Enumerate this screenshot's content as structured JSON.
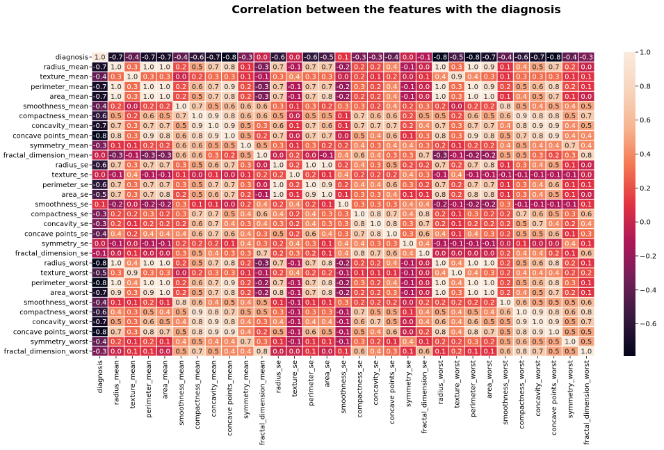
{
  "chart_data": {
    "type": "heatmap",
    "title": "Correlation between the features with the diagnosis",
    "colormap": "rocket",
    "vmin": -0.79,
    "vmax": 1.0,
    "annotated": true,
    "colorbar": {
      "placement": "right",
      "ticks": [
        "-0.6",
        "-0.4",
        "-0.2",
        "0.0",
        "0.2",
        "0.4",
        "0.6",
        "0.8",
        "1.0"
      ]
    },
    "labels": [
      "diagnosis",
      "radius_mean",
      "texture_mean",
      "perimeter_mean",
      "area_mean",
      "smoothness_mean",
      "compactness_mean",
      "concavity_mean",
      "concave points_mean",
      "symmetry_mean",
      "fractal_dimension_mean",
      "radius_se",
      "texture_se",
      "perimeter_se",
      "area_se",
      "smoothness_se",
      "compactness_se",
      "concavity_se",
      "concave points_se",
      "symmetry_se",
      "fractal_dimension_se",
      "radius_worst",
      "texture_worst",
      "perimeter_worst",
      "area_worst",
      "smoothness_worst",
      "compactness_worst",
      "concavity_worst",
      "concave points_worst",
      "symmetry_worst",
      "fractal_dimension_worst"
    ],
    "values": [
      [
        1.0,
        -0.7,
        -0.4,
        -0.7,
        -0.7,
        -0.4,
        -0.6,
        -0.7,
        -0.8,
        -0.3,
        0.0,
        -0.6,
        0.0,
        -0.6,
        -0.5,
        0.1,
        -0.3,
        -0.3,
        -0.4,
        0.0,
        -0.1,
        -0.8,
        -0.5,
        -0.8,
        -0.7,
        -0.4,
        -0.6,
        -0.7,
        -0.8,
        -0.4,
        -0.3
      ],
      [
        -0.7,
        1.0,
        0.3,
        1.0,
        1.0,
        0.2,
        0.5,
        0.7,
        0.8,
        0.1,
        -0.3,
        0.7,
        -0.1,
        0.7,
        0.7,
        -0.2,
        0.2,
        0.2,
        0.4,
        -0.1,
        -0.0,
        1.0,
        0.3,
        1.0,
        0.9,
        0.1,
        0.4,
        0.5,
        0.7,
        0.2,
        0.0
      ],
      [
        -0.4,
        0.3,
        1.0,
        0.3,
        0.3,
        -0.0,
        0.2,
        0.3,
        0.3,
        0.1,
        -0.1,
        0.3,
        0.4,
        0.3,
        0.3,
        0.0,
        0.2,
        0.1,
        0.2,
        0.0,
        0.1,
        0.4,
        0.9,
        0.4,
        0.3,
        0.1,
        0.3,
        0.3,
        0.3,
        0.1,
        0.1
      ],
      [
        -0.7,
        1.0,
        0.3,
        1.0,
        1.0,
        0.2,
        0.6,
        0.7,
        0.9,
        0.2,
        -0.3,
        0.7,
        -0.1,
        0.7,
        0.7,
        -0.2,
        0.3,
        0.2,
        0.4,
        -0.1,
        -0.0,
        1.0,
        0.3,
        1.0,
        0.9,
        0.2,
        0.5,
        0.6,
        0.8,
        0.2,
        0.1
      ],
      [
        -0.7,
        1.0,
        0.3,
        1.0,
        1.0,
        0.2,
        0.5,
        0.7,
        0.8,
        0.2,
        -0.3,
        0.7,
        -0.1,
        0.7,
        0.8,
        -0.2,
        0.2,
        0.2,
        0.4,
        -0.1,
        -0.0,
        1.0,
        0.3,
        1.0,
        1.0,
        0.1,
        0.4,
        0.5,
        0.7,
        0.1,
        0.0
      ],
      [
        -0.4,
        0.2,
        -0.0,
        0.2,
        0.2,
        1.0,
        0.7,
        0.5,
        0.6,
        0.6,
        0.6,
        0.3,
        0.1,
        0.3,
        0.2,
        0.3,
        0.3,
        0.2,
        0.4,
        0.2,
        0.3,
        0.2,
        0.0,
        0.2,
        0.2,
        0.8,
        0.5,
        0.4,
        0.5,
        0.4,
        0.5
      ],
      [
        -0.6,
        0.5,
        0.2,
        0.6,
        0.5,
        0.7,
        1.0,
        0.9,
        0.8,
        0.6,
        0.6,
        0.5,
        0.0,
        0.5,
        0.5,
        0.1,
        0.7,
        0.6,
        0.6,
        0.2,
        0.5,
        0.5,
        0.2,
        0.6,
        0.5,
        0.6,
        0.9,
        0.8,
        0.8,
        0.5,
        0.7
      ],
      [
        -0.7,
        0.7,
        0.3,
        0.7,
        0.7,
        0.5,
        0.9,
        1.0,
        0.9,
        0.5,
        0.3,
        0.6,
        0.1,
        0.7,
        0.6,
        0.1,
        0.7,
        0.7,
        0.7,
        0.2,
        0.4,
        0.7,
        0.3,
        0.7,
        0.7,
        0.4,
        0.8,
        0.9,
        0.9,
        0.4,
        0.5
      ],
      [
        -0.8,
        0.8,
        0.3,
        0.9,
        0.8,
        0.6,
        0.8,
        0.9,
        1.0,
        0.5,
        0.2,
        0.7,
        0.0,
        0.7,
        0.7,
        0.0,
        0.5,
        0.4,
        0.6,
        0.1,
        0.3,
        0.8,
        0.3,
        0.9,
        0.8,
        0.5,
        0.7,
        0.8,
        0.9,
        0.4,
        0.4
      ],
      [
        -0.3,
        0.1,
        0.1,
        0.2,
        0.2,
        0.6,
        0.6,
        0.5,
        0.5,
        1.0,
        0.5,
        0.3,
        0.1,
        0.3,
        0.2,
        0.2,
        0.4,
        0.3,
        0.4,
        0.4,
        0.3,
        0.2,
        0.1,
        0.2,
        0.2,
        0.4,
        0.5,
        0.4,
        0.4,
        0.7,
        0.4
      ],
      [
        0.0,
        -0.3,
        -0.1,
        -0.3,
        -0.3,
        0.6,
        0.6,
        0.3,
        0.2,
        0.5,
        1.0,
        0.0,
        0.2,
        0.0,
        -0.1,
        0.4,
        0.6,
        0.4,
        0.3,
        0.3,
        0.7,
        -0.3,
        -0.1,
        -0.2,
        -0.2,
        0.5,
        0.5,
        0.3,
        0.2,
        0.3,
        0.8
      ],
      [
        -0.6,
        0.7,
        0.3,
        0.7,
        0.7,
        0.3,
        0.5,
        0.6,
        0.7,
        0.3,
        0.0,
        1.0,
        0.2,
        1.0,
        1.0,
        0.2,
        0.4,
        0.3,
        0.5,
        0.2,
        0.2,
        0.7,
        0.2,
        0.7,
        0.8,
        0.1,
        0.3,
        0.4,
        0.5,
        0.1,
        0.0
      ],
      [
        0.0,
        -0.1,
        0.4,
        -0.1,
        -0.1,
        0.1,
        0.0,
        0.1,
        0.0,
        0.1,
        0.2,
        0.2,
        1.0,
        0.2,
        0.1,
        0.4,
        0.2,
        0.2,
        0.2,
        0.4,
        0.3,
        -0.1,
        0.4,
        -0.1,
        -0.1,
        -0.1,
        -0.1,
        -0.1,
        -0.1,
        -0.1,
        -0.0
      ],
      [
        -0.6,
        0.7,
        0.3,
        0.7,
        0.7,
        0.3,
        0.5,
        0.7,
        0.7,
        0.3,
        0.0,
        1.0,
        0.2,
        1.0,
        0.9,
        0.2,
        0.4,
        0.4,
        0.6,
        0.3,
        0.2,
        0.7,
        0.2,
        0.7,
        0.7,
        0.1,
        0.3,
        0.4,
        0.6,
        0.1,
        0.1
      ],
      [
        -0.5,
        0.7,
        0.3,
        0.7,
        0.8,
        0.2,
        0.5,
        0.6,
        0.7,
        0.2,
        -0.1,
        1.0,
        0.1,
        0.9,
        1.0,
        0.1,
        0.3,
        0.3,
        0.4,
        0.1,
        0.1,
        0.8,
        0.2,
        0.8,
        0.8,
        0.1,
        0.3,
        0.4,
        0.5,
        0.1,
        0.0
      ],
      [
        0.1,
        -0.2,
        0.0,
        -0.2,
        -0.2,
        0.3,
        0.1,
        0.1,
        0.0,
        0.2,
        0.4,
        0.2,
        0.4,
        0.2,
        0.1,
        1.0,
        0.3,
        0.3,
        0.3,
        0.4,
        0.4,
        -0.2,
        -0.1,
        -0.2,
        -0.2,
        0.3,
        -0.1,
        -0.1,
        -0.1,
        -0.1,
        0.1
      ],
      [
        -0.3,
        0.2,
        0.2,
        0.3,
        0.2,
        0.3,
        0.7,
        0.7,
        0.5,
        0.4,
        0.6,
        0.4,
        0.2,
        0.4,
        0.3,
        0.3,
        1.0,
        0.8,
        0.7,
        0.4,
        0.8,
        0.2,
        0.1,
        0.3,
        0.2,
        0.2,
        0.7,
        0.6,
        0.5,
        0.3,
        0.6
      ],
      [
        -0.3,
        0.2,
        0.1,
        0.2,
        0.2,
        0.2,
        0.6,
        0.7,
        0.4,
        0.3,
        0.4,
        0.3,
        0.2,
        0.4,
        0.3,
        0.3,
        0.8,
        1.0,
        0.8,
        0.3,
        0.7,
        0.2,
        0.1,
        0.2,
        0.2,
        0.2,
        0.5,
        0.7,
        0.4,
        0.2,
        0.4
      ],
      [
        -0.4,
        0.4,
        0.2,
        0.4,
        0.4,
        0.4,
        0.6,
        0.7,
        0.6,
        0.4,
        0.3,
        0.5,
        0.2,
        0.6,
        0.4,
        0.3,
        0.7,
        0.8,
        1.0,
        0.3,
        0.6,
        0.4,
        0.1,
        0.4,
        0.3,
        0.2,
        0.5,
        0.5,
        0.6,
        0.1,
        0.3
      ],
      [
        0.0,
        -0.1,
        0.0,
        -0.1,
        -0.1,
        0.2,
        0.2,
        0.2,
        0.1,
        0.4,
        0.3,
        0.2,
        0.4,
        0.3,
        0.1,
        0.4,
        0.4,
        0.3,
        0.3,
        1.0,
        0.4,
        -0.1,
        -0.1,
        -0.1,
        -0.1,
        -0.0,
        0.1,
        0.0,
        -0.0,
        0.4,
        0.1
      ],
      [
        -0.1,
        -0.0,
        0.1,
        -0.0,
        -0.0,
        0.3,
        0.5,
        0.4,
        0.3,
        0.3,
        0.7,
        0.2,
        0.3,
        0.2,
        0.1,
        0.4,
        0.8,
        0.7,
        0.6,
        0.4,
        1.0,
        -0.0,
        -0.0,
        -0.0,
        -0.0,
        0.2,
        0.4,
        0.4,
        0.2,
        0.1,
        0.6
      ],
      [
        -0.8,
        1.0,
        0.4,
        1.0,
        1.0,
        0.2,
        0.5,
        0.7,
        0.8,
        0.2,
        -0.3,
        0.7,
        -0.1,
        0.7,
        0.8,
        -0.2,
        0.2,
        0.2,
        0.4,
        -0.1,
        -0.0,
        1.0,
        0.4,
        1.0,
        1.0,
        0.2,
        0.5,
        0.6,
        0.8,
        0.2,
        0.1
      ],
      [
        -0.5,
        0.3,
        0.9,
        0.3,
        0.3,
        0.0,
        0.2,
        0.3,
        0.3,
        0.1,
        -0.1,
        0.2,
        0.4,
        0.2,
        0.2,
        -0.1,
        0.1,
        0.1,
        0.1,
        -0.1,
        -0.0,
        0.4,
        1.0,
        0.4,
        0.3,
        0.2,
        0.4,
        0.4,
        0.4,
        0.2,
        0.2
      ],
      [
        -0.8,
        1.0,
        0.4,
        1.0,
        1.0,
        0.2,
        0.6,
        0.7,
        0.9,
        0.2,
        -0.2,
        0.7,
        -0.1,
        0.7,
        0.8,
        -0.2,
        0.3,
        0.2,
        0.4,
        -0.1,
        -0.0,
        1.0,
        0.4,
        1.0,
        1.0,
        0.2,
        0.5,
        0.6,
        0.8,
        0.3,
        0.1
      ],
      [
        -0.7,
        0.9,
        0.3,
        0.9,
        1.0,
        0.2,
        0.5,
        0.7,
        0.8,
        0.2,
        -0.2,
        0.8,
        -0.1,
        0.7,
        0.8,
        -0.2,
        0.2,
        0.2,
        0.3,
        -0.1,
        -0.0,
        1.0,
        0.3,
        1.0,
        1.0,
        0.2,
        0.4,
        0.5,
        0.7,
        0.2,
        0.1
      ],
      [
        -0.4,
        0.1,
        0.1,
        0.2,
        0.1,
        0.8,
        0.6,
        0.4,
        0.5,
        0.4,
        0.5,
        0.1,
        -0.1,
        0.1,
        0.1,
        0.3,
        0.2,
        0.2,
        0.2,
        -0.0,
        0.2,
        0.2,
        0.2,
        0.2,
        0.2,
        1.0,
        0.6,
        0.5,
        0.5,
        0.5,
        0.6
      ],
      [
        -0.6,
        0.4,
        0.3,
        0.5,
        0.4,
        0.5,
        0.9,
        0.8,
        0.7,
        0.5,
        0.5,
        0.3,
        -0.1,
        0.3,
        0.3,
        -0.1,
        0.7,
        0.5,
        0.5,
        0.1,
        0.4,
        0.5,
        0.4,
        0.5,
        0.4,
        0.6,
        1.0,
        0.9,
        0.8,
        0.6,
        0.8
      ],
      [
        -0.7,
        0.5,
        0.3,
        0.6,
        0.5,
        0.4,
        0.8,
        0.9,
        0.8,
        0.4,
        0.3,
        0.4,
        -0.1,
        0.4,
        0.4,
        -0.1,
        0.6,
        0.7,
        0.5,
        0.0,
        0.4,
        0.6,
        0.4,
        0.6,
        0.5,
        0.5,
        0.9,
        1.0,
        0.9,
        0.5,
        0.7
      ],
      [
        -0.8,
        0.7,
        0.3,
        0.8,
        0.7,
        0.5,
        0.8,
        0.9,
        0.9,
        0.4,
        0.2,
        0.5,
        -0.1,
        0.6,
        0.5,
        -0.1,
        0.5,
        0.4,
        0.6,
        -0.0,
        0.2,
        0.8,
        0.4,
        0.8,
        0.7,
        0.5,
        0.8,
        0.9,
        1.0,
        0.5,
        0.5
      ],
      [
        -0.4,
        0.2,
        0.1,
        0.2,
        0.1,
        0.4,
        0.5,
        0.4,
        0.4,
        0.7,
        0.3,
        0.1,
        -0.1,
        0.1,
        0.1,
        -0.1,
        0.3,
        0.2,
        0.1,
        0.4,
        0.1,
        0.2,
        0.2,
        0.3,
        0.2,
        0.5,
        0.6,
        0.5,
        0.5,
        1.0,
        0.5
      ],
      [
        -0.3,
        0.0,
        0.1,
        0.1,
        0.0,
        0.5,
        0.7,
        0.5,
        0.4,
        0.4,
        0.8,
        0.0,
        -0.0,
        0.1,
        0.0,
        0.1,
        0.6,
        0.4,
        0.3,
        0.1,
        0.6,
        0.1,
        0.2,
        0.1,
        0.1,
        0.6,
        0.8,
        0.7,
        0.5,
        0.5,
        1.0
      ]
    ]
  }
}
